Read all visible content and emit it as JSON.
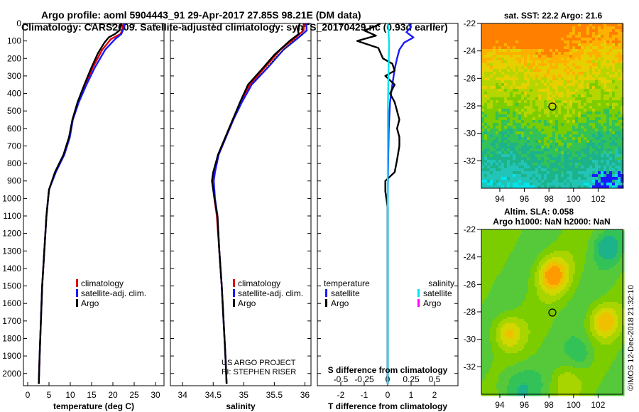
{
  "header": {
    "title_line1": "Argo profile: aoml 5904443_91 29-Apr-2017 27.85S 98.21E (DM data)",
    "title_line2": "Climatology: CARS2009. Satellite-adjusted climatology: synTS_20170429.nc (0.93d earlier)"
  },
  "colors": {
    "climatology": "#e00000",
    "satellite": "#1a1aff",
    "argo": "#000000",
    "satellite_salinity": "#00e5ee",
    "argo_salinity": "#ff00ff"
  },
  "credits": {
    "line1": "US ARGO PROJECT",
    "line2": "PI: STEPHEN RISER"
  },
  "timestamp": "©IMOS 12-Dec-2018 21:32:10",
  "chart_data": [
    {
      "type": "line",
      "name": "temperature-profile",
      "xlabel": "temperature (deg C)",
      "ylabel": "",
      "xlim": [
        -1,
        32
      ],
      "ylim": [
        2070,
        0
      ],
      "xticks": [
        0,
        5,
        10,
        15,
        20,
        25,
        30
      ],
      "yticks": [
        0,
        100,
        200,
        300,
        400,
        500,
        600,
        700,
        800,
        900,
        1000,
        1100,
        1200,
        1300,
        1400,
        1500,
        1600,
        1700,
        1800,
        1900,
        2000
      ],
      "legend": [
        "climatology",
        "satellite-adj. clim.",
        "Argo"
      ],
      "series": [
        {
          "name": "climatology",
          "points": [
            [
              22.5,
              0
            ],
            [
              22.3,
              30
            ],
            [
              21.8,
              60
            ],
            [
              19.5,
              90
            ],
            [
              17.5,
              150
            ],
            [
              15.3,
              250
            ],
            [
              13.5,
              350
            ],
            [
              11.8,
              450
            ],
            [
              10.5,
              550
            ],
            [
              9.8,
              650
            ],
            [
              8.5,
              750
            ],
            [
              6.5,
              850
            ],
            [
              5.0,
              950
            ],
            [
              4.4,
              1100
            ],
            [
              3.9,
              1300
            ],
            [
              3.4,
              1500
            ],
            [
              3.1,
              1700
            ],
            [
              2.8,
              1900
            ],
            [
              2.6,
              2060
            ]
          ]
        },
        {
          "name": "satellite-adj. clim.",
          "points": [
            [
              22.8,
              0
            ],
            [
              22.5,
              30
            ],
            [
              22.0,
              60
            ],
            [
              20.5,
              90
            ],
            [
              18.2,
              150
            ],
            [
              15.8,
              250
            ],
            [
              13.8,
              350
            ],
            [
              12.0,
              450
            ],
            [
              10.6,
              550
            ],
            [
              9.9,
              650
            ],
            [
              8.6,
              750
            ],
            [
              6.6,
              850
            ],
            [
              5.0,
              950
            ],
            [
              4.4,
              1100
            ],
            [
              3.9,
              1300
            ],
            [
              3.4,
              1500
            ],
            [
              3.1,
              1700
            ],
            [
              2.8,
              1900
            ],
            [
              2.6,
              2060
            ]
          ]
        },
        {
          "name": "Argo",
          "points": [
            [
              22.0,
              0
            ],
            [
              21.5,
              40
            ],
            [
              20.5,
              60
            ],
            [
              19.0,
              80
            ],
            [
              18.0,
              110
            ],
            [
              16.5,
              170
            ],
            [
              15.0,
              250
            ],
            [
              13.3,
              350
            ],
            [
              11.7,
              450
            ],
            [
              10.5,
              550
            ],
            [
              9.7,
              650
            ],
            [
              8.4,
              750
            ],
            [
              6.4,
              850
            ],
            [
              5.0,
              950
            ],
            [
              4.4,
              1100
            ],
            [
              3.9,
              1300
            ],
            [
              3.4,
              1500
            ],
            [
              3.1,
              1700
            ],
            [
              2.8,
              1900
            ],
            [
              2.6,
              2060
            ]
          ]
        }
      ]
    },
    {
      "type": "line",
      "name": "salinity-profile",
      "xlabel": "salinity",
      "ylabel": "",
      "xlim": [
        33.8,
        36.1
      ],
      "ylim": [
        2070,
        0
      ],
      "xticks": [
        34,
        34.5,
        35,
        35.5,
        36
      ],
      "legend": [
        "climatology",
        "satellite-adj. clim.",
        "Argo"
      ],
      "series": [
        {
          "name": "climatology",
          "points": [
            [
              35.98,
              0
            ],
            [
              35.98,
              40
            ],
            [
              35.85,
              80
            ],
            [
              35.6,
              150
            ],
            [
              35.35,
              250
            ],
            [
              35.1,
              350
            ],
            [
              34.95,
              450
            ],
            [
              34.82,
              550
            ],
            [
              34.7,
              650
            ],
            [
              34.58,
              750
            ],
            [
              34.52,
              850
            ],
            [
              34.5,
              900
            ],
            [
              34.52,
              1000
            ],
            [
              34.56,
              1100
            ],
            [
              34.6,
              1300
            ],
            [
              34.64,
              1500
            ],
            [
              34.67,
              1700
            ],
            [
              34.7,
              1900
            ],
            [
              34.72,
              2060
            ]
          ]
        },
        {
          "name": "satellite-adj. clim.",
          "points": [
            [
              36.02,
              0
            ],
            [
              36.03,
              40
            ],
            [
              35.9,
              80
            ],
            [
              35.65,
              150
            ],
            [
              35.4,
              250
            ],
            [
              35.13,
              350
            ],
            [
              34.97,
              450
            ],
            [
              34.83,
              550
            ],
            [
              34.71,
              650
            ],
            [
              34.59,
              750
            ],
            [
              34.53,
              850
            ],
            [
              34.51,
              900
            ],
            [
              34.53,
              1000
            ],
            [
              34.57,
              1100
            ],
            [
              34.6,
              1300
            ],
            [
              34.64,
              1500
            ],
            [
              34.67,
              1700
            ],
            [
              34.7,
              1900
            ],
            [
              34.72,
              2060
            ]
          ]
        },
        {
          "name": "Argo",
          "points": [
            [
              35.92,
              0
            ],
            [
              35.88,
              30
            ],
            [
              35.9,
              60
            ],
            [
              35.75,
              100
            ],
            [
              35.5,
              180
            ],
            [
              35.3,
              260
            ],
            [
              35.07,
              350
            ],
            [
              34.94,
              450
            ],
            [
              34.82,
              550
            ],
            [
              34.7,
              650
            ],
            [
              34.58,
              750
            ],
            [
              34.5,
              850
            ],
            [
              34.48,
              900
            ],
            [
              34.52,
              1000
            ],
            [
              34.57,
              1100
            ],
            [
              34.6,
              1300
            ],
            [
              34.64,
              1500
            ],
            [
              34.67,
              1700
            ],
            [
              34.7,
              1900
            ],
            [
              34.72,
              2060
            ]
          ]
        }
      ]
    },
    {
      "type": "line",
      "name": "difference-profile",
      "xlabel": "T difference from climatology",
      "x2label": "S difference from climatology",
      "xlim": [
        -3,
        3
      ],
      "ylim": [
        2070,
        0
      ],
      "xticks": [
        -2,
        -1,
        0,
        1,
        2
      ],
      "x2lim": [
        -0.75,
        0.75
      ],
      "x2ticks": [
        "-0.5",
        "-0.25",
        "0",
        "0.25",
        "0.5"
      ],
      "legend_temperature": {
        "title": "temperature",
        "items": [
          "satellite",
          "Argo"
        ]
      },
      "legend_salinity": {
        "title": "salinity",
        "items": [
          "satellite",
          "Argo"
        ]
      },
      "series": [
        {
          "name": "temperature satellite",
          "points": [
            [
              0.9,
              0
            ],
            [
              1.0,
              20
            ],
            [
              0.8,
              50
            ],
            [
              1.1,
              80
            ],
            [
              0.7,
              110
            ],
            [
              0.5,
              150
            ],
            [
              0.4,
              200
            ],
            [
              0.3,
              260
            ],
            [
              0.2,
              350
            ],
            [
              0.1,
              450
            ],
            [
              0.05,
              600
            ],
            [
              0.02,
              800
            ],
            [
              0,
              1000
            ],
            [
              0,
              1400
            ],
            [
              0,
              2060
            ]
          ]
        },
        {
          "name": "temperature Argo",
          "points": [
            [
              -0.3,
              0
            ],
            [
              -0.6,
              20
            ],
            [
              -1.0,
              40
            ],
            [
              -0.5,
              70
            ],
            [
              -1.3,
              100
            ],
            [
              -0.4,
              140
            ],
            [
              -0.2,
              200
            ],
            [
              0.2,
              230
            ],
            [
              0.3,
              270
            ],
            [
              -0.1,
              300
            ],
            [
              0.3,
              350
            ],
            [
              0.1,
              400
            ],
            [
              0.3,
              450
            ],
            [
              0.4,
              500
            ],
            [
              0.5,
              550
            ],
            [
              0.4,
              600
            ],
            [
              0.5,
              650
            ],
            [
              0.5,
              700
            ],
            [
              0.4,
              780
            ],
            [
              0.3,
              850
            ],
            [
              -0.1,
              900
            ],
            [
              -0.1,
              960
            ],
            [
              0,
              1050
            ],
            [
              0,
              1400
            ],
            [
              0,
              2060
            ]
          ]
        },
        {
          "name": "salinity satellite",
          "points": [
            [
              0.01,
              0
            ],
            [
              0.03,
              40
            ],
            [
              0.05,
              80
            ],
            [
              0.06,
              120
            ],
            [
              0.05,
              200
            ],
            [
              0.03,
              300
            ],
            [
              0.02,
              400
            ],
            [
              0.01,
              500
            ],
            [
              0.005,
              700
            ],
            [
              0,
              900
            ],
            [
              0,
              1300
            ],
            [
              0,
              2060
            ]
          ]
        }
      ]
    },
    {
      "type": "heatmap",
      "name": "sst-map",
      "title": "sat. SST: 22.2 Argo: 21.6",
      "xlim": [
        92.5,
        104
      ],
      "ylim": [
        -34,
        -22
      ],
      "xticks": [
        94,
        96,
        98,
        100,
        102
      ],
      "yticks": [
        -22,
        -24,
        -26,
        -28,
        -30,
        -32
      ],
      "marker": {
        "lon": 98.21,
        "lat": -27.85
      }
    },
    {
      "type": "heatmap",
      "name": "sla-map",
      "title": "Altim. SLA: 0.058",
      "subtitle": "Argo h1000: NaN h2000: NaN",
      "xlim": [
        92.5,
        104
      ],
      "ylim": [
        -34,
        -22
      ],
      "xticks": [
        94,
        96,
        98,
        100,
        102
      ],
      "yticks": [
        -22,
        -24,
        -26,
        -28,
        -30,
        -32
      ],
      "marker": {
        "lon": 98.21,
        "lat": -27.85
      }
    }
  ]
}
